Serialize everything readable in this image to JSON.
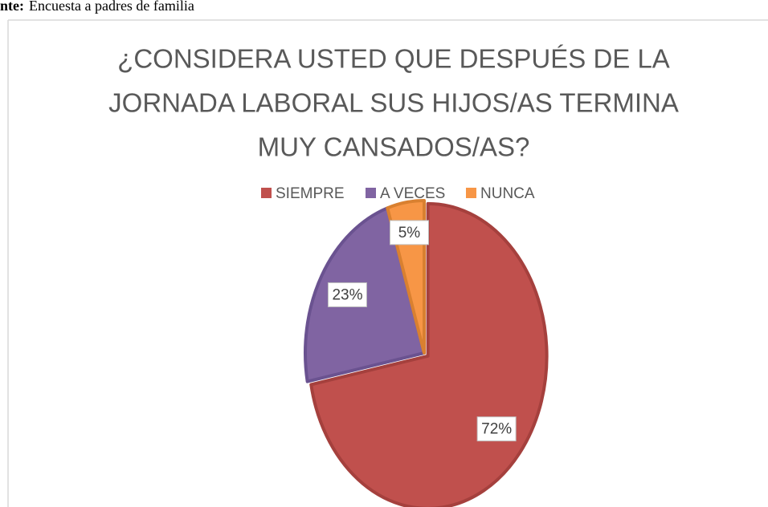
{
  "source": {
    "label": "nte:",
    "text": "Encuesta a padres de familia"
  },
  "chart_data": {
    "type": "pie",
    "title": [
      "¿CONSIDERA USTED QUE DESPUÉS DE LA",
      "JORNADA LABORAL SUS HIJOS/AS TERMINA",
      "MUY CANSADOS/AS?"
    ],
    "categories": [
      "SIEMPRE",
      "A VECES",
      "NUNCA"
    ],
    "values": [
      72,
      23,
      5
    ],
    "value_labels": [
      "72%",
      "23%",
      "5%"
    ],
    "colors": [
      "#c0504d",
      "#8064a2",
      "#f79646"
    ],
    "legend": "top"
  }
}
